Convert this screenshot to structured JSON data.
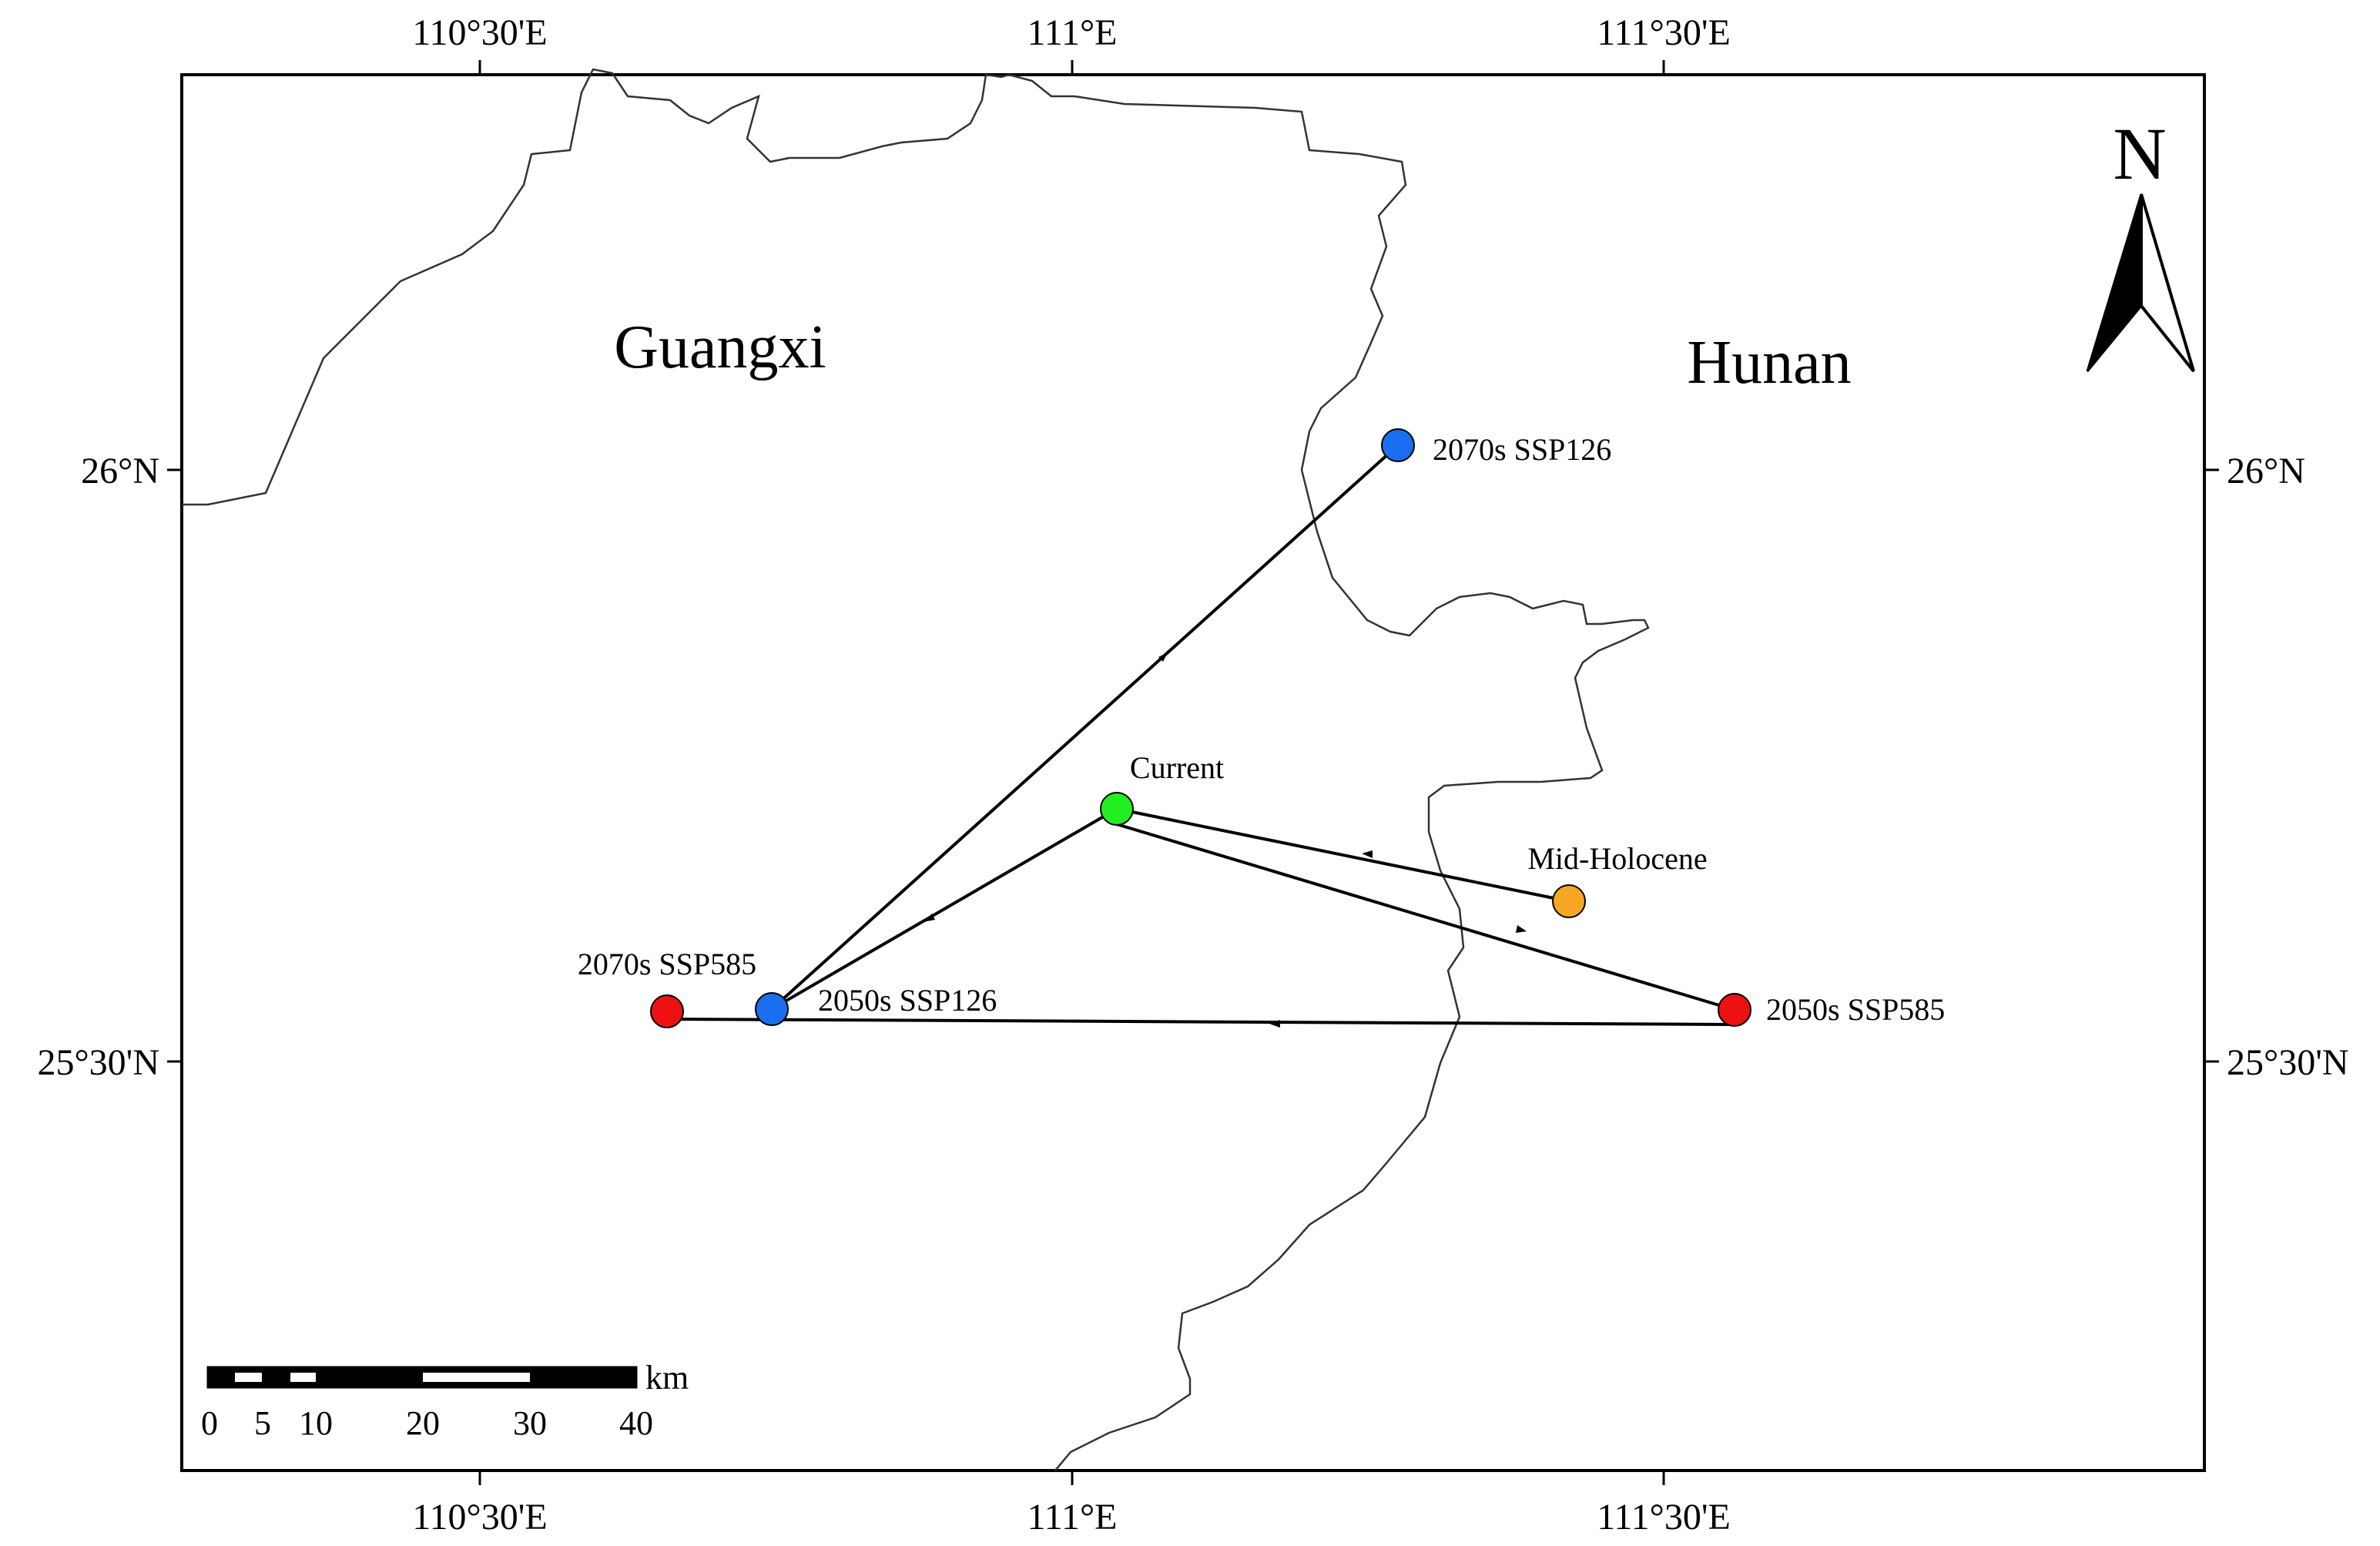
{
  "map": {
    "longitude_ticks": [
      "110°30'E",
      "111°E",
      "111°30'E"
    ],
    "latitude_ticks": [
      "26°N",
      "25°30'N"
    ],
    "regions": [
      "Guangxi",
      "Hunan"
    ],
    "north_arrow_label": "N",
    "scale_bar": {
      "unit": "km",
      "tick_labels": [
        "0",
        "5",
        "10",
        "20",
        "30",
        "40"
      ]
    },
    "points": [
      {
        "label": "Current",
        "color": "#22ee22"
      },
      {
        "label": "Mid-Holocene",
        "color": "#f5a623"
      },
      {
        "label": "2050s SSP126",
        "color": "#1a6ff0"
      },
      {
        "label": "2070s SSP126",
        "color": "#1a6ff0"
      },
      {
        "label": "2050s SSP585",
        "color": "#ee1111"
      },
      {
        "label": "2070s SSP585",
        "color": "#ee1111"
      }
    ],
    "trajectory": [
      "Mid-Holocene → Current",
      "Current → 2050s SSP126",
      "2050s SSP126 → 2070s SSP126",
      "Current → 2050s SSP585",
      "2050s SSP585 → 2070s SSP585"
    ]
  }
}
